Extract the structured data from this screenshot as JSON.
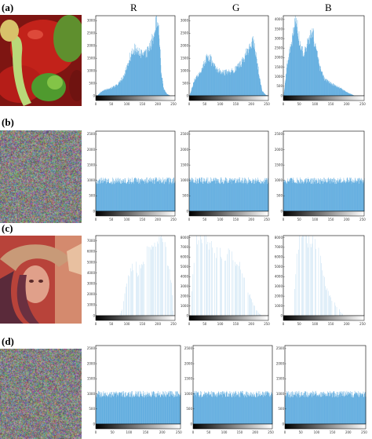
{
  "column_headers": [
    "R",
    "G",
    "B"
  ],
  "row_labels": [
    "(a)",
    "(b)",
    "(c)",
    "(d)"
  ],
  "colors": {
    "bar": "#3f9bd8",
    "axis": "#000000",
    "background": "#ffffff"
  },
  "images": [
    {
      "row": "(a)",
      "subject": "peppers"
    },
    {
      "row": "(b)",
      "subject": "noise"
    },
    {
      "row": "(c)",
      "subject": "lena"
    },
    {
      "row": "(d)",
      "subject": "noise"
    }
  ],
  "chart_data": [
    {
      "type": "bar",
      "row": "(a)",
      "channel": "R",
      "xlim": [
        0,
        255
      ],
      "ylim": [
        0,
        3200
      ],
      "yticks": [
        0,
        500,
        1000,
        1500,
        2000,
        2500,
        3000
      ],
      "xticks": [
        0,
        50,
        100,
        150,
        200,
        250
      ],
      "profile": [
        [
          0,
          0
        ],
        [
          5,
          20
        ],
        [
          15,
          150
        ],
        [
          30,
          250
        ],
        [
          50,
          320
        ],
        [
          70,
          450
        ],
        [
          90,
          800
        ],
        [
          105,
          1400
        ],
        [
          115,
          1750
        ],
        [
          125,
          1900
        ],
        [
          135,
          1800
        ],
        [
          145,
          1700
        ],
        [
          155,
          1650
        ],
        [
          165,
          1800
        ],
        [
          175,
          2050
        ],
        [
          185,
          2400
        ],
        [
          195,
          3150
        ],
        [
          203,
          2600
        ],
        [
          210,
          1000
        ],
        [
          218,
          300
        ],
        [
          228,
          80
        ],
        [
          240,
          0
        ],
        [
          255,
          0
        ]
      ]
    },
    {
      "type": "bar",
      "row": "(a)",
      "channel": "G",
      "xlim": [
        0,
        255
      ],
      "ylim": [
        0,
        3200
      ],
      "yticks": [
        0,
        500,
        1000,
        1500,
        2000,
        2500,
        3000
      ],
      "xticks": [
        0,
        50,
        100,
        150,
        200,
        250
      ],
      "profile": [
        [
          0,
          0
        ],
        [
          5,
          150
        ],
        [
          15,
          600
        ],
        [
          25,
          800
        ],
        [
          40,
          1100
        ],
        [
          55,
          1550
        ],
        [
          65,
          1600
        ],
        [
          75,
          1300
        ],
        [
          90,
          1050
        ],
        [
          110,
          950
        ],
        [
          130,
          980
        ],
        [
          150,
          1100
        ],
        [
          170,
          1400
        ],
        [
          190,
          1900
        ],
        [
          205,
          2200
        ],
        [
          215,
          1700
        ],
        [
          225,
          800
        ],
        [
          235,
          200
        ],
        [
          245,
          50
        ],
        [
          255,
          0
        ]
      ]
    },
    {
      "type": "bar",
      "row": "(a)",
      "channel": "B",
      "xlim": [
        0,
        255
      ],
      "ylim": [
        0,
        4200
      ],
      "yticks": [
        0,
        500,
        1000,
        1500,
        2000,
        2500,
        3000,
        3500,
        4000
      ],
      "xticks": [
        0,
        50,
        100,
        150,
        200,
        250
      ],
      "profile": [
        [
          0,
          0
        ],
        [
          3,
          300
        ],
        [
          10,
          1500
        ],
        [
          18,
          2300
        ],
        [
          25,
          2800
        ],
        [
          32,
          3600
        ],
        [
          38,
          4100
        ],
        [
          45,
          3600
        ],
        [
          55,
          2500
        ],
        [
          65,
          2300
        ],
        [
          75,
          2700
        ],
        [
          85,
          3200
        ],
        [
          93,
          3300
        ],
        [
          102,
          2600
        ],
        [
          115,
          1500
        ],
        [
          130,
          900
        ],
        [
          150,
          650
        ],
        [
          170,
          500
        ],
        [
          190,
          300
        ],
        [
          205,
          150
        ],
        [
          215,
          80
        ],
        [
          225,
          0
        ],
        [
          255,
          0
        ]
      ]
    },
    {
      "type": "bar",
      "row": "(b)",
      "channel": "R",
      "xlim": [
        0,
        255
      ],
      "ylim": [
        0,
        2600
      ],
      "yticks": [
        0,
        500,
        1000,
        1500,
        2000,
        2500
      ],
      "xticks": [
        0,
        50,
        100,
        150,
        200,
        250
      ],
      "uniform_level": 1000
    },
    {
      "type": "bar",
      "row": "(b)",
      "channel": "G",
      "xlim": [
        0,
        255
      ],
      "ylim": [
        0,
        2600
      ],
      "yticks": [
        0,
        500,
        1000,
        1500,
        2000,
        2500
      ],
      "xticks": [
        0,
        50,
        100,
        150,
        200,
        250
      ],
      "uniform_level": 1000
    },
    {
      "type": "bar",
      "row": "(b)",
      "channel": "B",
      "xlim": [
        0,
        255
      ],
      "ylim": [
        0,
        2600
      ],
      "yticks": [
        0,
        500,
        1000,
        1500,
        2000,
        2500
      ],
      "xticks": [
        0,
        50,
        100,
        150,
        200,
        250
      ],
      "uniform_level": 1000
    },
    {
      "type": "bar",
      "row": "(c)",
      "channel": "R",
      "xlim": [
        0,
        255
      ],
      "ylim": [
        0,
        7500
      ],
      "yticks": [
        0,
        1000,
        2000,
        3000,
        4000,
        5000,
        6000,
        7000
      ],
      "xticks": [
        0,
        50,
        100,
        150,
        200,
        250
      ],
      "sparse": true,
      "profile": [
        [
          0,
          0
        ],
        [
          75,
          0
        ],
        [
          85,
          700
        ],
        [
          95,
          2400
        ],
        [
          105,
          3600
        ],
        [
          115,
          4600
        ],
        [
          125,
          5000
        ],
        [
          135,
          4300
        ],
        [
          145,
          4500
        ],
        [
          160,
          5700
        ],
        [
          175,
          6800
        ],
        [
          190,
          7400
        ],
        [
          205,
          7400
        ],
        [
          220,
          6600
        ],
        [
          235,
          4800
        ],
        [
          245,
          2500
        ],
        [
          250,
          0
        ],
        [
          255,
          0
        ]
      ]
    },
    {
      "type": "bar",
      "row": "(c)",
      "channel": "G",
      "xlim": [
        0,
        255
      ],
      "ylim": [
        0,
        8200
      ],
      "yticks": [
        0,
        1000,
        2000,
        3000,
        4000,
        5000,
        6000,
        7000,
        8000
      ],
      "xticks": [
        0,
        50,
        100,
        150,
        200,
        250
      ],
      "sparse": true,
      "profile": [
        [
          0,
          0
        ],
        [
          5,
          0
        ],
        [
          10,
          3500
        ],
        [
          20,
          7600
        ],
        [
          30,
          8200
        ],
        [
          45,
          8200
        ],
        [
          60,
          7900
        ],
        [
          75,
          7000
        ],
        [
          90,
          6800
        ],
        [
          110,
          6200
        ],
        [
          130,
          6300
        ],
        [
          150,
          5800
        ],
        [
          170,
          4500
        ],
        [
          185,
          3200
        ],
        [
          200,
          1600
        ],
        [
          215,
          700
        ],
        [
          225,
          200
        ],
        [
          235,
          0
        ],
        [
          255,
          0
        ]
      ]
    },
    {
      "type": "bar",
      "row": "(c)",
      "channel": "B",
      "xlim": [
        0,
        255
      ],
      "ylim": [
        0,
        8200
      ],
      "yticks": [
        0,
        1000,
        2000,
        3000,
        4000,
        5000,
        6000,
        7000,
        8000
      ],
      "xticks": [
        0,
        50,
        100,
        150,
        200,
        250
      ],
      "sparse": true,
      "profile": [
        [
          0,
          0
        ],
        [
          30,
          0
        ],
        [
          38,
          3500
        ],
        [
          45,
          7500
        ],
        [
          55,
          8200
        ],
        [
          70,
          8200
        ],
        [
          85,
          8200
        ],
        [
          100,
          7200
        ],
        [
          115,
          6400
        ],
        [
          130,
          3500
        ],
        [
          145,
          2000
        ],
        [
          160,
          1400
        ],
        [
          175,
          700
        ],
        [
          185,
          200
        ],
        [
          195,
          0
        ],
        [
          255,
          0
        ]
      ]
    },
    {
      "type": "bar",
      "row": "(d)",
      "channel": "R",
      "xlim": [
        0,
        255
      ],
      "ylim": [
        0,
        2600
      ],
      "yticks": [
        0,
        500,
        1000,
        1500,
        2000,
        2500
      ],
      "xticks": [
        0,
        50,
        100,
        150,
        200,
        250
      ],
      "uniform_level": 1000
    },
    {
      "type": "bar",
      "row": "(d)",
      "channel": "G",
      "xlim": [
        0,
        255
      ],
      "ylim": [
        0,
        2600
      ],
      "yticks": [
        0,
        500,
        1000,
        1500,
        2000,
        2500
      ],
      "xticks": [
        0,
        50,
        100,
        150,
        200,
        250
      ],
      "uniform_level": 1000
    },
    {
      "type": "bar",
      "row": "(d)",
      "channel": "B",
      "xlim": [
        0,
        255
      ],
      "ylim": [
        0,
        2600
      ],
      "yticks": [
        0,
        500,
        1000,
        1500,
        2000,
        2500
      ],
      "xticks": [
        0,
        50,
        100,
        150,
        200,
        250
      ],
      "uniform_level": 1000
    }
  ]
}
